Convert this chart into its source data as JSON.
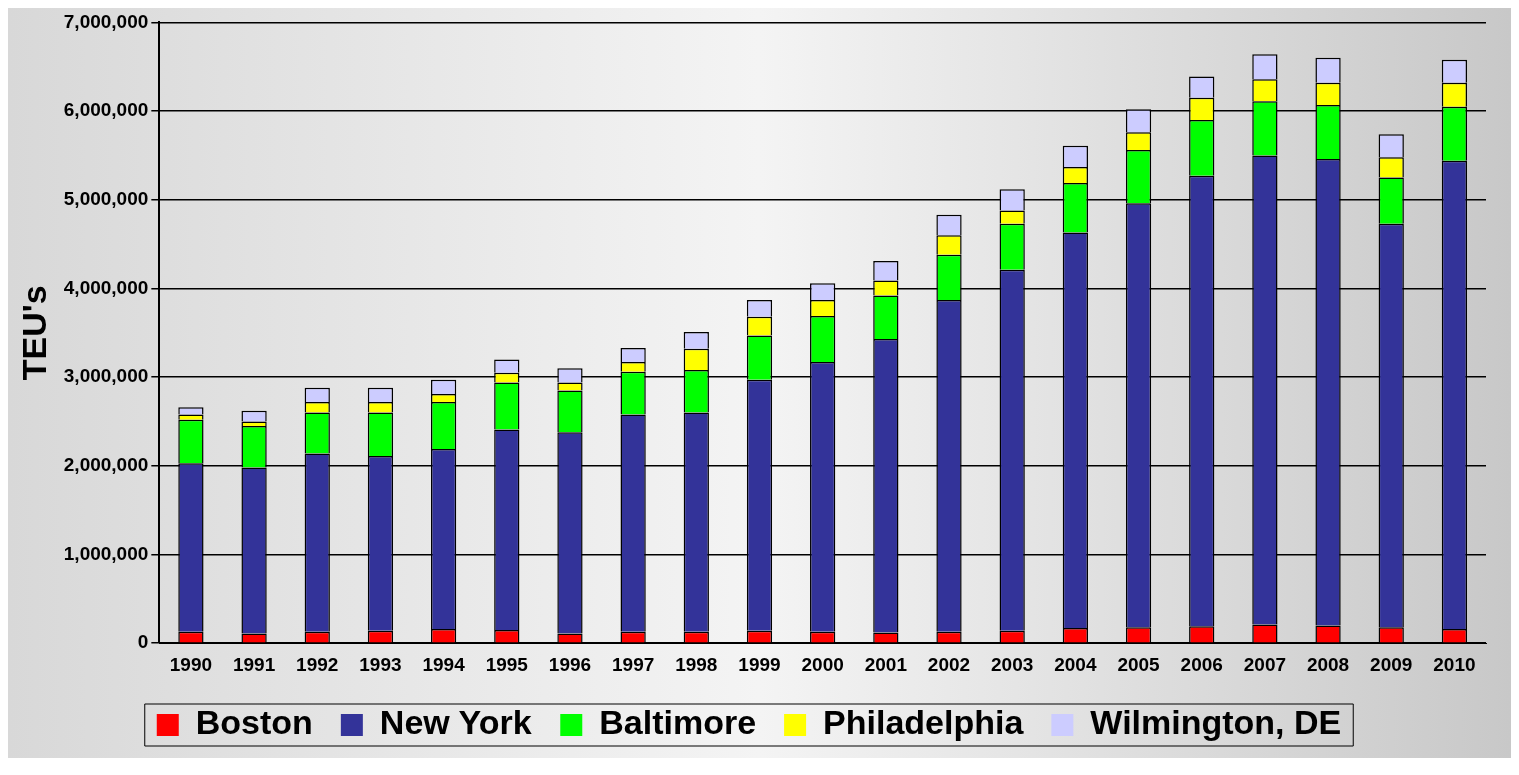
{
  "chart_data": {
    "type": "bar",
    "stacked": true,
    "ylabel": "TEU's",
    "categories": [
      "1990",
      "1991",
      "1992",
      "1993",
      "1994",
      "1995",
      "1996",
      "1997",
      "1998",
      "1999",
      "2000",
      "2001",
      "2002",
      "2003",
      "2004",
      "2005",
      "2006",
      "2007",
      "2008",
      "2009",
      "2010"
    ],
    "series": [
      {
        "name": "Boston",
        "color": "#ff0000",
        "values": [
          130000,
          110000,
          130000,
          140000,
          160000,
          150000,
          110000,
          130000,
          130000,
          140000,
          130000,
          120000,
          130000,
          140000,
          170000,
          180000,
          190000,
          210000,
          200000,
          180000,
          160000
        ]
      },
      {
        "name": "New York",
        "color": "#333399",
        "values": [
          1900000,
          1870000,
          2010000,
          1970000,
          2030000,
          2260000,
          2270000,
          2450000,
          2470000,
          2830000,
          3040000,
          3310000,
          3740000,
          4070000,
          4460000,
          4780000,
          5080000,
          5290000,
          5260000,
          4550000,
          5280000
        ]
      },
      {
        "name": "Baltimore",
        "color": "#00ff00",
        "values": [
          490000,
          470000,
          460000,
          490000,
          530000,
          530000,
          470000,
          480000,
          480000,
          500000,
          520000,
          490000,
          510000,
          520000,
          560000,
          600000,
          630000,
          610000,
          610000,
          520000,
          610000
        ]
      },
      {
        "name": "Philadelphia",
        "color": "#ffff00",
        "values": [
          60000,
          50000,
          120000,
          120000,
          90000,
          110000,
          90000,
          110000,
          240000,
          210000,
          180000,
          170000,
          220000,
          150000,
          180000,
          200000,
          250000,
          250000,
          250000,
          230000,
          270000
        ]
      },
      {
        "name": "Wilmington, DE",
        "color": "#ccccff",
        "values": [
          80000,
          120000,
          160000,
          160000,
          160000,
          150000,
          160000,
          160000,
          190000,
          190000,
          190000,
          220000,
          230000,
          240000,
          240000,
          260000,
          240000,
          280000,
          280000,
          260000,
          260000
        ]
      }
    ],
    "ylim": [
      0,
      7000000
    ],
    "yticks": [
      0,
      {
        "value": 1000000,
        "label": "1,000,000"
      },
      {
        "value": 2000000,
        "label": "2,000,000"
      },
      {
        "value": 3000000,
        "label": "3,000,000"
      },
      {
        "value": 4000000,
        "label": "4,000,000"
      },
      {
        "value": 5000000,
        "label": "5,000,000"
      },
      {
        "value": 6000000,
        "label": "6,000,000"
      },
      {
        "value": 7000000,
        "label": "7,000,000"
      }
    ],
    "grid": "y",
    "legend": "bottom"
  }
}
